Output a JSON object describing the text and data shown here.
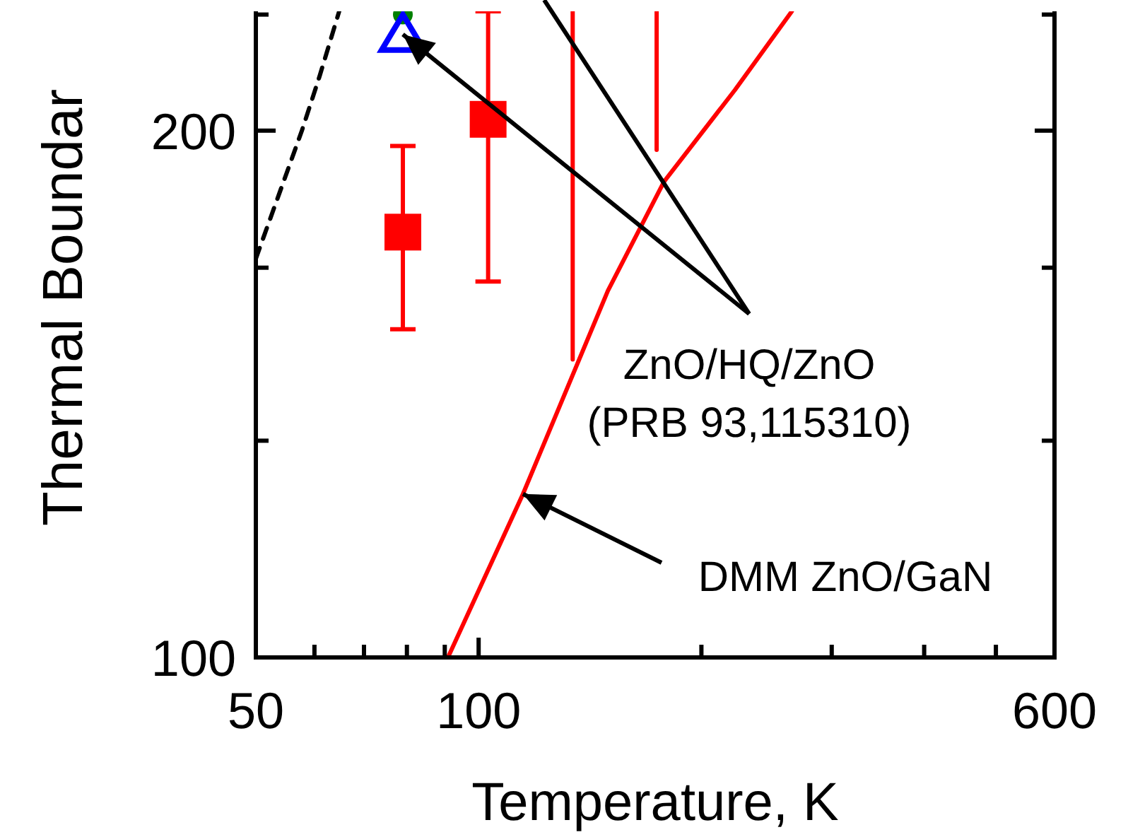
{
  "chart_data": {
    "type": "scatter",
    "xlabel": "Temperature, K",
    "ylabel": "Thermal Boundar",
    "log": "xy",
    "xlim": [
      50,
      600
    ],
    "xticks": [
      50,
      {
        "value": 60,
        "label": null
      },
      {
        "value": 70,
        "label": null
      },
      {
        "value": 80,
        "label": null
      },
      {
        "value": 90,
        "label": null
      },
      100,
      {
        "value": 200,
        "label": null
      },
      {
        "value": 300,
        "label": null
      },
      {
        "value": 400,
        "label": null
      },
      {
        "value": 500,
        "label": null
      },
      600
    ],
    "ylim": [
      100,
      234
    ],
    "yticks": [
      100,
      {
        "value": 133,
        "label": null
      },
      {
        "value": 167,
        "label": null
      },
      200,
      {
        "value": 233,
        "label": null
      }
    ],
    "series": [
      {
        "type": "line",
        "color": "#000000",
        "line_style": "dashed",
        "marker": "none",
        "x": [
          50,
          54,
          57.7,
          61,
          64.8
        ],
        "values": [
          169,
          185,
          200,
          215,
          234
        ]
      },
      {
        "type": "line",
        "color": "#ff0000",
        "line_style": "solid",
        "marker": "none",
        "x": [
          90.9,
          114.8,
          149.5,
          178,
          222,
          265
        ],
        "values": [
          100,
          124,
          162,
          187,
          211,
          234
        ]
      },
      {
        "color": "#ff0000",
        "marker": "square",
        "x": [
          79,
          103
        ],
        "values": [
          175,
          203
        ],
        "errors": [
          [
            154,
            196
          ],
          [
            164,
            234
          ]
        ]
      },
      {
        "type": "line",
        "color": "#ff0000",
        "line_style": "solid",
        "marker": "none",
        "x": [
          134,
          134
        ],
        "values": [
          148,
          234
        ]
      },
      {
        "type": "line",
        "color": "#ff0000",
        "line_style": "solid",
        "marker": "none",
        "x": [
          174,
          174
        ],
        "values": [
          195,
          234
        ]
      },
      {
        "color": "#008000",
        "marker": "circle",
        "x": [
          79
        ],
        "values": [
          233
        ]
      },
      {
        "color": "#0000ff",
        "marker": "triangle",
        "x": [
          79
        ],
        "values": [
          227
        ]
      }
    ],
    "annotations": [
      {
        "text": "ZnO/HQ/ZnO\n(PRB 93,115310)",
        "x": 79,
        "y": 227
      },
      {
        "text": "DMM ZnO/GaN",
        "x": 114.8,
        "y": 124
      }
    ]
  }
}
